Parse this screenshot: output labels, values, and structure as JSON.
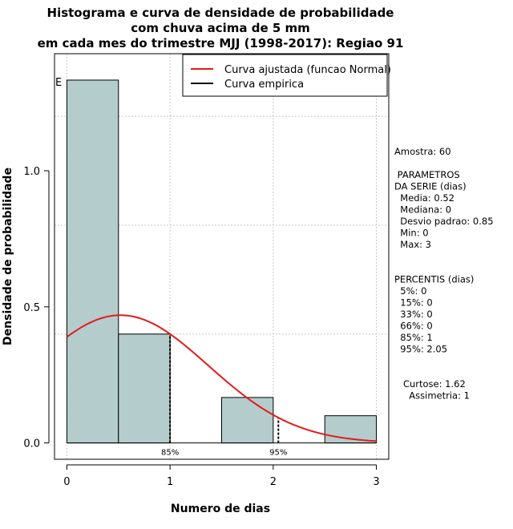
{
  "chart_data": {
    "type": "bar",
    "title": [
      "Histograma e curva de densidade de probabilidade",
      "com chuva acima de 5 mm",
      "em cada mes do trimestre MJJ (1998-2017): Regiao 91"
    ],
    "xlabel": "Numero de dias",
    "ylabel": "Densidade de probabilidade",
    "xlim": [
      -0.12,
      3.12
    ],
    "ylim": [
      -0.06,
      1.43
    ],
    "x_ticks": [
      "0",
      "1",
      "2",
      "3"
    ],
    "y_ticks": [
      "0.0",
      "0.5",
      "1.0"
    ],
    "grid": true,
    "bins": [
      {
        "from": 0.0,
        "to": 0.5,
        "density": 1.333
      },
      {
        "from": 0.5,
        "to": 1.0,
        "density": 0.4
      },
      {
        "from": 1.0,
        "to": 1.5,
        "density": 0.0
      },
      {
        "from": 1.5,
        "to": 2.0,
        "density": 0.167
      },
      {
        "from": 2.0,
        "to": 2.5,
        "density": 0.0
      },
      {
        "from": 2.5,
        "to": 3.0,
        "density": 0.1
      }
    ],
    "bar_color": "#b4cccc",
    "series": [
      {
        "name": "Curva ajustada (funcao Normal)",
        "color": "#e41a1c",
        "distribution": "normal",
        "mean": 0.52,
        "sd": 0.85
      },
      {
        "name": "Curva empirica",
        "color": "#000000"
      }
    ],
    "legend_position": "top-right",
    "percentile_lines": [
      {
        "x": 1.0,
        "label": "85%"
      },
      {
        "x": 2.05,
        "label": "95%"
      }
    ],
    "corner_mark": "E"
  },
  "side_text": [
    "Amostra: 60",
    "",
    " PARAMETROS",
    "DA SERIE (dias)",
    "  Media: 0.52",
    "  Mediana: 0",
    "  Desvio padrao: 0.85",
    "  Min: 0",
    "  Max: 3",
    "",
    "",
    "PERCENTIS (dias)",
    "  5%: 0",
    "  15%: 0",
    "  33%: 0",
    "  66%: 0",
    "  85%: 1",
    "  95%: 2.05",
    "",
    "",
    "   Curtose: 1.62",
    "     Assimetria: 1"
  ]
}
